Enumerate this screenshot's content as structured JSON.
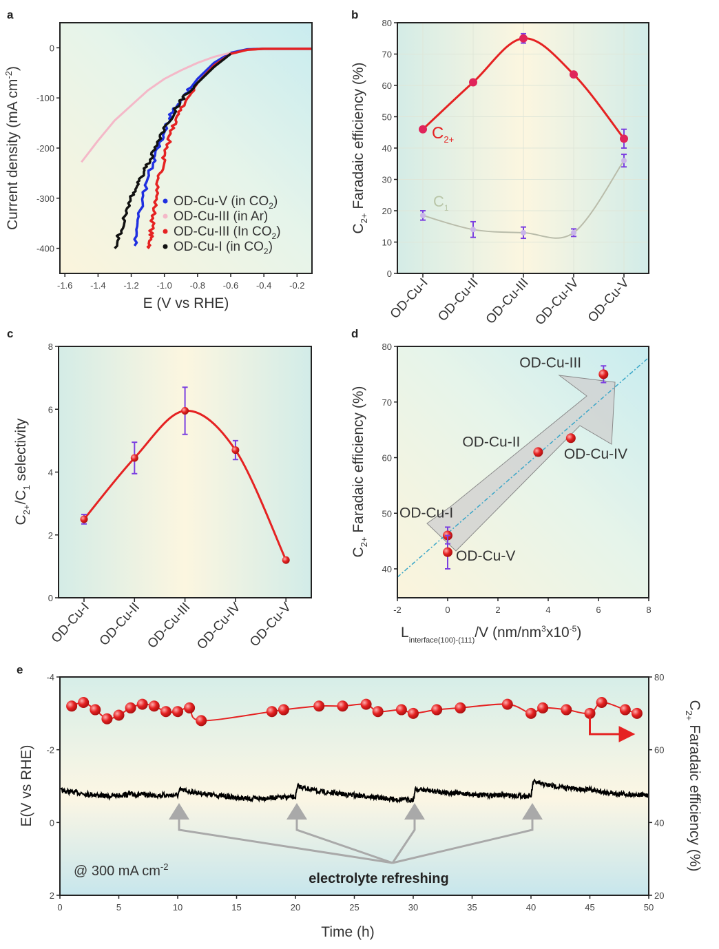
{
  "chart_data": [
    {
      "panel": "a",
      "type": "line",
      "xlabel": "E (V vs RHE)",
      "ylabel": "Current density (mA cm",
      "ylabel_sup": "-2",
      "ylabel_end": ")",
      "xlim": [
        -1.63,
        -0.11
      ],
      "ylim": [
        -450,
        50
      ],
      "xticks": [
        -1.6,
        -1.4,
        -1.2,
        -1.0,
        -0.8,
        -0.6,
        -0.4,
        -0.2
      ],
      "xtick_labels": [
        "-1.6",
        "-1.4",
        "-1.2",
        "-1.0",
        "-0.8",
        "-0.6",
        "-0.4",
        "-0.2"
      ],
      "yticks": [
        0,
        -100,
        -200,
        -300,
        -400
      ],
      "ytick_labels": [
        "0",
        "-100",
        "-200",
        "-300",
        "-400"
      ],
      "legend_position": "bottom-right",
      "series": [
        {
          "name": "OD-Cu-V (in CO2)",
          "name_main": "OD-Cu-V (in CO",
          "name_sub": "2",
          "name_end": ")",
          "color": "#1f2fe0",
          "x": [
            -0.11,
            -0.4,
            -0.5,
            -0.6,
            -0.7,
            -0.8,
            -0.9,
            -0.95,
            -1.0,
            -1.05,
            -1.1,
            -1.15,
            -1.18
          ],
          "y": [
            -2,
            -2,
            -3,
            -10,
            -30,
            -62,
            -105,
            -125,
            -165,
            -210,
            -260,
            -330,
            -395
          ]
        },
        {
          "name": "OD-Cu-III (in Ar)",
          "name_main": "OD-Cu-III (in Ar)",
          "name_sub": "",
          "name_end": "",
          "color": "#f4b8c8",
          "x": [
            -0.6,
            -0.7,
            -0.8,
            -0.9,
            -1.0,
            -1.1,
            -1.2,
            -1.3,
            -1.4,
            -1.5
          ],
          "y": [
            -10,
            -18,
            -30,
            -45,
            -62,
            -85,
            -115,
            -145,
            -185,
            -228
          ]
        },
        {
          "name": "OD-Cu-III (In CO2)",
          "name_main": "OD-Cu-III (In CO",
          "name_sub": "2",
          "name_end": ")",
          "color": "#e52222",
          "x": [
            -0.11,
            -0.4,
            -0.5,
            -0.6,
            -0.7,
            -0.8,
            -0.9,
            -0.95,
            -1.0,
            -1.03,
            -1.06,
            -1.08,
            -1.09
          ],
          "y": [
            -2,
            -2,
            -4,
            -12,
            -35,
            -70,
            -120,
            -160,
            -215,
            -260,
            -320,
            -370,
            -400
          ]
        },
        {
          "name": "OD-Cu-I (in CO2)",
          "name_main": "OD-Cu-I (in CO",
          "name_sub": "2",
          "name_end": ")",
          "color": "#111111",
          "x": [
            -0.6,
            -0.7,
            -0.8,
            -0.9,
            -1.0,
            -1.05,
            -1.1,
            -1.15,
            -1.2,
            -1.25,
            -1.3
          ],
          "y": [
            -12,
            -38,
            -70,
            -105,
            -160,
            -195,
            -230,
            -265,
            -300,
            -350,
            -400
          ]
        }
      ]
    },
    {
      "panel": "b",
      "type": "line",
      "categories": [
        "OD-Cu-I",
        "OD-Cu-II",
        "OD-Cu-III",
        "OD-Cu-IV",
        "OD-Cu-V"
      ],
      "ylabel_parts": [
        "C",
        "2+",
        " Faradaic efficiency (%)"
      ],
      "ylim": [
        0,
        80
      ],
      "yticks": [
        0,
        10,
        20,
        30,
        40,
        50,
        60,
        70,
        80
      ],
      "ytick_labels": [
        "0",
        "10",
        "20",
        "30",
        "40",
        "50",
        "60",
        "70",
        "80"
      ],
      "grid": true,
      "series": [
        {
          "name_main": "C",
          "name_sub": "2+",
          "color": "#e52222",
          "values": [
            46,
            61,
            75,
            63.5,
            43
          ],
          "errors": [
            0.8,
            0.8,
            1.5,
            0.8,
            3
          ]
        },
        {
          "name_main": "C",
          "name_sub": "1",
          "color": "#b9bcaa",
          "values": [
            18.5,
            14,
            13,
            13,
            36
          ],
          "errors": [
            1.5,
            2.5,
            1.8,
            1.2,
            2
          ]
        }
      ]
    },
    {
      "panel": "c",
      "type": "line",
      "categories": [
        "OD-Cu-I",
        "OD-Cu-II",
        "OD-Cu-III",
        "OD-Cu-IV",
        "OD-Cu-V"
      ],
      "ylabel_parts": [
        "C",
        "2+",
        "/C",
        "1",
        " selectivity"
      ],
      "ylim": [
        0,
        8
      ],
      "yticks": [
        0,
        2,
        4,
        6,
        8
      ],
      "ytick_labels": [
        "0",
        "2",
        "4",
        "6",
        "8"
      ],
      "series": [
        {
          "color": "#e52222",
          "values": [
            2.5,
            4.45,
            5.95,
            4.7,
            1.2
          ],
          "errors": [
            0.15,
            0.5,
            0.75,
            0.3,
            0.05
          ]
        }
      ]
    },
    {
      "panel": "d",
      "type": "scatter",
      "xlabel_parts": [
        "L",
        "interface(100)-(111)",
        "/V (nm/nm",
        "3",
        "x10",
        "-5",
        ")"
      ],
      "ylabel_parts": [
        "C",
        "2+",
        " Faradaic efficiency (%)"
      ],
      "xlim": [
        -2,
        8
      ],
      "ylim": [
        34.8,
        80
      ],
      "xticks": [
        -2,
        0,
        2,
        4,
        6,
        8
      ],
      "xtick_labels": [
        "-2",
        "0",
        "2",
        "4",
        "6",
        "8"
      ],
      "yticks": [
        40,
        50,
        60,
        70,
        80
      ],
      "ytick_labels": [
        "40",
        "50",
        "60",
        "70",
        "80"
      ],
      "points": [
        {
          "label": "OD-Cu-I",
          "x": 0,
          "y": 46,
          "error": 1.5
        },
        {
          "label": "OD-Cu-V",
          "x": 0,
          "y": 43,
          "error": 3
        },
        {
          "label": "OD-Cu-II",
          "x": 3.6,
          "y": 61,
          "error": 0.5
        },
        {
          "label": "OD-Cu-IV",
          "x": 4.9,
          "y": 63.5,
          "error": 0.5
        },
        {
          "label": "OD-Cu-III",
          "x": 6.2,
          "y": 75,
          "error": 1.5
        }
      ],
      "fit_line": {
        "x": [
          -2,
          8
        ],
        "y": [
          38.5,
          78
        ],
        "color": "#3aa6c8"
      }
    },
    {
      "panel": "e",
      "type": "line",
      "xlabel": "Time (h)",
      "ylabel_left": "E(V vs RHE)",
      "ylabel_right_parts": [
        "C",
        "2+",
        " Faradaic efficiency (%)"
      ],
      "xlim": [
        0,
        50
      ],
      "ylim_left": [
        2,
        -4
      ],
      "ylim_right": [
        20,
        80
      ],
      "xticks": [
        0,
        5,
        10,
        15,
        20,
        25,
        30,
        35,
        40,
        45,
        50
      ],
      "xtick_labels": [
        "0",
        "5",
        "10",
        "15",
        "20",
        "25",
        "30",
        "35",
        "40",
        "45",
        "50"
      ],
      "yticks_left": [
        -4,
        -2,
        0,
        2
      ],
      "ytick_labels_left": [
        "-4",
        "-2",
        "0",
        "2"
      ],
      "yticks_right": [
        80,
        60,
        40,
        20
      ],
      "ytick_labels_right": [
        "80",
        "60",
        "40",
        "20"
      ],
      "annotation_current": "@ 300 mA cm",
      "annotation_current_sup": "-2",
      "annotation_refresh": "electrolyte refreshing",
      "refresh_times": [
        10,
        20,
        30,
        40
      ],
      "potential": {
        "color": "#000000",
        "t": [
          0,
          2,
          4,
          6,
          8,
          10,
          10.2,
          12,
          14,
          16,
          18,
          20,
          20.2,
          22,
          24,
          26,
          28,
          30,
          30.2,
          32,
          34,
          36,
          38,
          40,
          40.2,
          41,
          43,
          45,
          47,
          50
        ],
        "E": [
          -0.88,
          -0.8,
          -0.72,
          -0.78,
          -0.75,
          -0.75,
          -0.9,
          -0.8,
          -0.72,
          -0.65,
          -0.68,
          -0.7,
          -1.0,
          -0.85,
          -0.78,
          -0.72,
          -0.65,
          -0.62,
          -0.92,
          -0.85,
          -0.8,
          -0.75,
          -0.75,
          -0.72,
          -1.12,
          -1.05,
          -0.95,
          -0.9,
          -0.8,
          -0.75
        ]
      },
      "fe": {
        "color": "#e52222",
        "t": [
          1,
          2,
          3,
          4,
          5,
          6,
          7,
          8,
          9,
          10,
          11,
          12,
          18,
          19,
          22,
          24,
          26,
          27,
          29,
          30,
          32,
          34,
          38,
          40,
          41,
          43,
          45,
          46,
          48,
          49
        ],
        "values": [
          72,
          73,
          71,
          68.5,
          69.5,
          71.5,
          72.5,
          72,
          70.5,
          70.5,
          71.5,
          68,
          70.5,
          71,
          72,
          72,
          72.5,
          70.5,
          71,
          70,
          71,
          71.5,
          72.5,
          70,
          71.5,
          71,
          70,
          73,
          71,
          70
        ]
      }
    }
  ],
  "panel_labels": [
    "a",
    "b",
    "c",
    "d",
    "e"
  ]
}
